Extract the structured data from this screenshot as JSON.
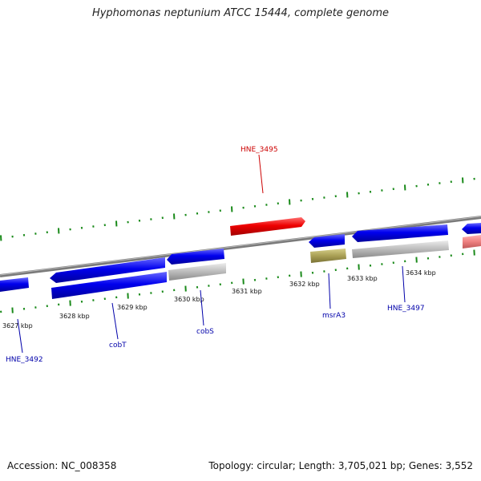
{
  "title": "Hyphomonas neptunium ATCC 15444, complete genome",
  "accession": "Accession: NC_008358",
  "summary": "Topology: circular; Length: 3,705,021 bp; Genes: 3,552",
  "colors": {
    "gene_blue": "#0000ee",
    "gene_red": "#ee0000",
    "gene_grey": "#bbbbbb",
    "gene_olive": "#aaa055",
    "gene_pink": "#ee8080",
    "backbone": "#888888",
    "tick_green": "#1a8a1a",
    "label_red": "#cc0000",
    "label_blue": "#0000aa"
  },
  "tick_labels": [
    "3627 kbp",
    "3628 kbp",
    "3629 kbp",
    "3630 kbp",
    "3631 kbp",
    "3632 kbp",
    "3633 kbp",
    "3634 kbp"
  ],
  "gene_labels": [
    {
      "name": "HNE_3495",
      "color": "red"
    },
    {
      "name": "HNE_3492",
      "color": "blue"
    },
    {
      "name": "cobT",
      "color": "blue"
    },
    {
      "name": "cobS",
      "color": "blue"
    },
    {
      "name": "msrA3",
      "color": "blue"
    },
    {
      "name": "HNE_3497",
      "color": "blue"
    }
  ]
}
